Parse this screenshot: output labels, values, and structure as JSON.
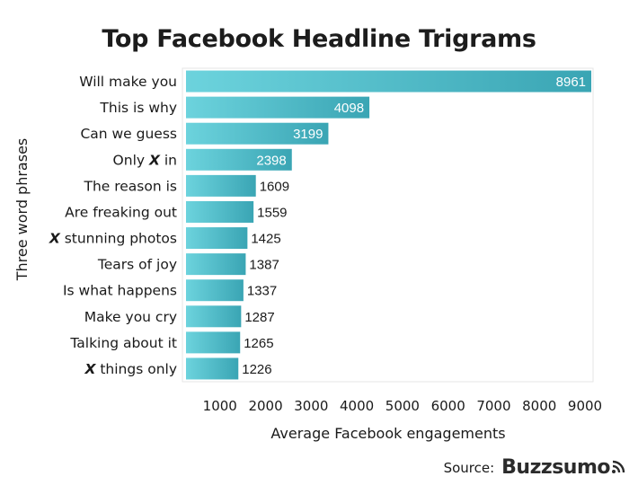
{
  "chart_data": {
    "type": "bar",
    "orientation": "horizontal",
    "title": "Top Facebook Headline Trigrams",
    "xlabel": "Average Facebook engagements",
    "ylabel": "Three word phrases",
    "categories": [
      "Will make you",
      "This is why",
      "Can we guess",
      "Only X in",
      "The reason is",
      "Are freaking out",
      "X stunning photos",
      "Tears of joy",
      "Is what happens",
      "Make you cry",
      "Talking about it",
      "X things only"
    ],
    "values": [
      8961,
      4098,
      3199,
      2398,
      1609,
      1559,
      1425,
      1387,
      1337,
      1287,
      1265,
      1226
    ],
    "xlim": [
      0,
      9000
    ],
    "xticks": [
      1000,
      2000,
      3000,
      4000,
      5000,
      6000,
      7000,
      8000,
      9000
    ],
    "grid": false,
    "legend": "none",
    "colors": {
      "bar_start": "#6cd3dd",
      "bar_end": "#3aa5b4",
      "label_inside": "#ffffff",
      "label_outside": "#1a1a1a"
    }
  },
  "source": {
    "label": "Source:",
    "brand": "Buzzsumo",
    "brand_icon": "signal-waves-icon"
  }
}
